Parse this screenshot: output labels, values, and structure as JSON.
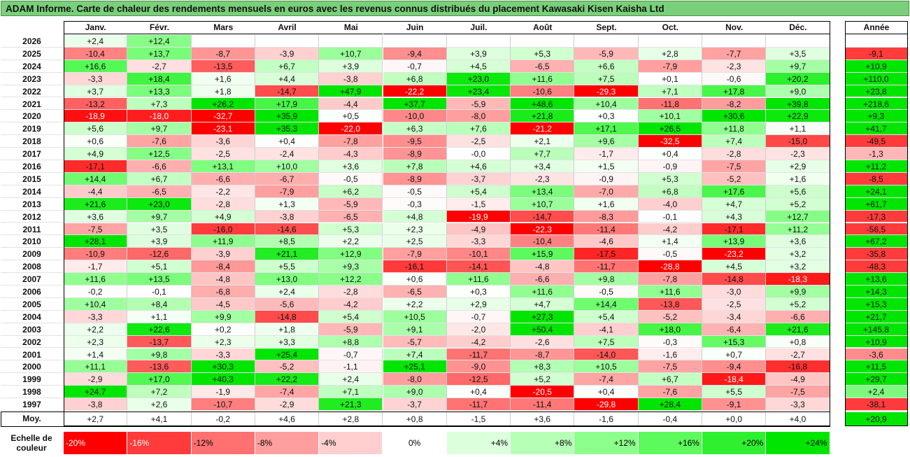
{
  "title": "ADAM Informe. Carte de chaleur des rendements mensuels en euros avec les revenus connus distribués du placement Kawasaki Kisen Kaisha Ltd",
  "chart_data": {
    "type": "heatmap",
    "title": "ADAM Informe. Carte de chaleur des rendements mensuels en euros avec les revenus connus distribués du placement Kawasaki Kisen Kaisha Ltd",
    "columns": [
      "Janv.",
      "Févr.",
      "Mars",
      "Avril",
      "Mai",
      "Juin",
      "Juil.",
      "Août",
      "Sept.",
      "Oct.",
      "Nov.",
      "Déc."
    ],
    "year_column": "Année",
    "rows": [
      {
        "year": "2026",
        "values": [
          "+2,4",
          "+12,4",
          "",
          "",
          "",
          "",
          "",
          "",
          "",
          "",
          "",
          ""
        ],
        "annual": ""
      },
      {
        "year": "2025",
        "values": [
          "-10,4",
          "+13,7",
          "-8,7",
          "-3,9",
          "+10,7",
          "-9,4",
          "+3,9",
          "+5,3",
          "-5,9",
          "+2,8",
          "-7,7",
          "+3,5"
        ],
        "annual": "-9,1"
      },
      {
        "year": "2024",
        "values": [
          "+16,6",
          "-2,7",
          "-13,5",
          "+6,7",
          "+3,9",
          "-0,7",
          "+4,5",
          "-6,5",
          "+6,6",
          "-7,9",
          "-2,3",
          "+9,7"
        ],
        "annual": "+10,9"
      },
      {
        "year": "2023",
        "values": [
          "-3,3",
          "+18,4",
          "+1,6",
          "+4,4",
          "-3,8",
          "+6,8",
          "+23,0",
          "+11,6",
          "+7,5",
          "+0,1",
          "-0,6",
          "+20,2"
        ],
        "annual": "+110,0"
      },
      {
        "year": "2022",
        "values": [
          "+3,7",
          "+13,3",
          "+1,8",
          "-14,7",
          "+47,9",
          "-22,2",
          "+23,4",
          "-10,6",
          "-29,3",
          "+7,1",
          "+17,8",
          "+9,0"
        ],
        "annual": "+23,8"
      },
      {
        "year": "2021",
        "values": [
          "-13,2",
          "+7,3",
          "+26,2",
          "+17,9",
          "-4,4",
          "+37,7",
          "-5,9",
          "+48,6",
          "+10,4",
          "-11,8",
          "-8,2",
          "+39,8"
        ],
        "annual": "+218,6"
      },
      {
        "year": "2020",
        "values": [
          "-18,9",
          "-18,0",
          "-32,7",
          "+35,9",
          "+0,5",
          "-10,0",
          "-8,0",
          "+21,8",
          "+0,3",
          "+10,1",
          "+30,6",
          "+22,9"
        ],
        "annual": "+9,3"
      },
      {
        "year": "2019",
        "values": [
          "+5,6",
          "+9,7",
          "-23,1",
          "+35,3",
          "-22,0",
          "+6,3",
          "+7,6",
          "-21,2",
          "+17,1",
          "+26,5",
          "+11,8",
          "+1,1"
        ],
        "annual": "+41,7"
      },
      {
        "year": "2018",
        "values": [
          "+0,6",
          "-7,6",
          "-3,6",
          "+0,4",
          "-7,8",
          "-9,5",
          "-2,5",
          "+2,1",
          "+9,6",
          "-32,5",
          "+7,4",
          "-15,0"
        ],
        "annual": "-49,5"
      },
      {
        "year": "2017",
        "values": [
          "+4,9",
          "+12,5",
          "-2,5",
          "-2,4",
          "-4,3",
          "-8,9",
          "-0,0",
          "+7,7",
          "-1,7",
          "+0,4",
          "-2,8",
          "-2,3"
        ],
        "annual": "-1,3"
      },
      {
        "year": "2016",
        "values": [
          "-17,1",
          "-6,6",
          "+13,1",
          "+10,0",
          "+3,6",
          "+7,8",
          "+4,6",
          "+3,4",
          "+1,5",
          "-0,9",
          "-7,5",
          "+2,9"
        ],
        "annual": "+11,2"
      },
      {
        "year": "2015",
        "values": [
          "+14,4",
          "+6,7",
          "-6,6",
          "-6,7",
          "-0,5",
          "-8,9",
          "-3,7",
          "-2,3",
          "-0,9",
          "+5,3",
          "-5,2",
          "+1,6"
        ],
        "annual": "-8,5"
      },
      {
        "year": "2014",
        "values": [
          "-4,4",
          "-6,5",
          "-2,2",
          "-7,9",
          "+6,2",
          "-0,5",
          "+5,4",
          "+13,4",
          "-7,0",
          "+6,8",
          "+17,6",
          "+5,6"
        ],
        "annual": "+24,1"
      },
      {
        "year": "2013",
        "values": [
          "+21,6",
          "+23,0",
          "-2,8",
          "+1,3",
          "-5,9",
          "-0,3",
          "-1,5",
          "+10,7",
          "+1,6",
          "-4,0",
          "+4,7",
          "+5,2"
        ],
        "annual": "+61,7"
      },
      {
        "year": "2012",
        "values": [
          "+3,6",
          "+9,7",
          "+4,9",
          "-3,8",
          "-6,5",
          "+4,8",
          "-19,9",
          "-14,7",
          "-8,3",
          "-0,1",
          "+4,3",
          "+12,7"
        ],
        "annual": "-17,3"
      },
      {
        "year": "2011",
        "values": [
          "-7,5",
          "+3,5",
          "-16,0",
          "-14,6",
          "+5,3",
          "+2,3",
          "-4,9",
          "-22,3",
          "-11,4",
          "-4,2",
          "-17,1",
          "+11,2"
        ],
        "annual": "-56,5"
      },
      {
        "year": "2010",
        "values": [
          "+28,1",
          "+3,9",
          "+11,9",
          "+8,5",
          "+2,2",
          "+2,5",
          "-3,3",
          "-10,4",
          "-4,6",
          "+1,4",
          "+13,9",
          "+3,6"
        ],
        "annual": "+67,2"
      },
      {
        "year": "2009",
        "values": [
          "-10,9",
          "-12,6",
          "-3,9",
          "+21,1",
          "+12,9",
          "-7,9",
          "-10,1",
          "+15,9",
          "-17,5",
          "-0,5",
          "-23,2",
          "+3,2"
        ],
        "annual": "-35,8"
      },
      {
        "year": "2008",
        "values": [
          "-1,7",
          "+5,1",
          "-8,4",
          "+5,5",
          "+9,3",
          "-16,1",
          "-14,1",
          "-4,8",
          "-11,7",
          "-28,8",
          "+4,5",
          "+3,2"
        ],
        "annual": "-48,3"
      },
      {
        "year": "2007",
        "values": [
          "+11,6",
          "+13,5",
          "-4,8",
          "+13,0",
          "+12,2",
          "+0,6",
          "+11,6",
          "-6,6",
          "+9,8",
          "-7,8",
          "-14,8",
          "-18,3"
        ],
        "annual": "+13,6"
      },
      {
        "year": "2006",
        "values": [
          "-0,2",
          "-0,1",
          "-6,8",
          "+2,4",
          "-2,8",
          "-6,5",
          "+0,3",
          "+11,6",
          "-0,5",
          "+11,6",
          "-3,0",
          "+9,9"
        ],
        "annual": "+14,3"
      },
      {
        "year": "2005",
        "values": [
          "+10,4",
          "+8,4",
          "-4,5",
          "-5,6",
          "-4,2",
          "+2,2",
          "+2,9",
          "+4,7",
          "+14,4",
          "-13,8",
          "-2,5",
          "+5,2"
        ],
        "annual": "+15,3"
      },
      {
        "year": "2004",
        "values": [
          "-3,3",
          "+1,1",
          "+9,9",
          "-14,8",
          "+5,4",
          "+10,5",
          "-0,7",
          "+27,3",
          "+5,4",
          "-5,2",
          "-3,4",
          "-6,6"
        ],
        "annual": "+21,7"
      },
      {
        "year": "2003",
        "values": [
          "+2,2",
          "+22,6",
          "+0,2",
          "+1,8",
          "-5,9",
          "+9,1",
          "-2,0",
          "+50,4",
          "-4,1",
          "+18,0",
          "-6,4",
          "+21,6"
        ],
        "annual": "+145,8"
      },
      {
        "year": "2002",
        "values": [
          "+2,3",
          "-13,7",
          "+2,3",
          "+3,3",
          "+8,8",
          "-5,7",
          "-4,2",
          "-2,6",
          "+7,5",
          "-0,3",
          "+15,3",
          "+0,8"
        ],
        "annual": "+10,9"
      },
      {
        "year": "2001",
        "values": [
          "+1,4",
          "+9,8",
          "-3,3",
          "+25,4",
          "-0,7",
          "+7,4",
          "-11,7",
          "-8,7",
          "-14,0",
          "-1,6",
          "+0,7",
          "-2,7"
        ],
        "annual": "-3,6"
      },
      {
        "year": "2000",
        "values": [
          "+11,1",
          "-13,6",
          "+30,3",
          "-5,2",
          "-1,1",
          "+25,1",
          "-9,0",
          "+8,3",
          "+10,5",
          "-7,5",
          "-9,4",
          "-16,8"
        ],
        "annual": "+11,5"
      },
      {
        "year": "1999",
        "values": [
          "-2,9",
          "+17,0",
          "+40,3",
          "+22,2",
          "+2,4",
          "-8,0",
          "-12,5",
          "+5,2",
          "-7,4",
          "+6,7",
          "-18,4",
          "-4,9"
        ],
        "annual": "+29,7"
      },
      {
        "year": "1998",
        "values": [
          "+24,7",
          "+7,2",
          "-1,9",
          "-7,4",
          "+7,1",
          "+9,0",
          "+0,4",
          "-20,5",
          "+0,4",
          "-7,6",
          "+5,5",
          "-7,5"
        ],
        "annual": "+2,4"
      },
      {
        "year": "1997",
        "values": [
          "-3,8",
          "+2,6",
          "-10,7",
          "-2,9",
          "+21,3",
          "-3,7",
          "-11,7",
          "-11,4",
          "-29,8",
          "+28,4",
          "-9,1",
          "-3,3"
        ],
        "annual": "-38,1"
      }
    ],
    "average": {
      "label": "Moy.",
      "values": [
        "+2,7",
        "+4,1",
        "-0,2",
        "+4,6",
        "+2,8",
        "+0,8",
        "-1,5",
        "+3,6",
        "-1,6",
        "-0,4",
        "+0,0",
        "+4,0"
      ],
      "annual": "+20,9"
    },
    "color_scale": {
      "label": "Echelle de couleur",
      "stops": [
        "-20%",
        "-16%",
        "-12%",
        "-8%",
        "-4%",
        "0%",
        "+4%",
        "+8%",
        "+12%",
        "+16%",
        "+20%",
        "+24%"
      ],
      "colors": [
        "#ff0000",
        "#ff3b3b",
        "#ff7070",
        "#ff9e9e",
        "#ffcfcf",
        "#ffffff",
        "#dcffdc",
        "#b6ffb6",
        "#8cff8c",
        "#5cfa5c",
        "#2ff02f",
        "#00e600"
      ]
    }
  }
}
